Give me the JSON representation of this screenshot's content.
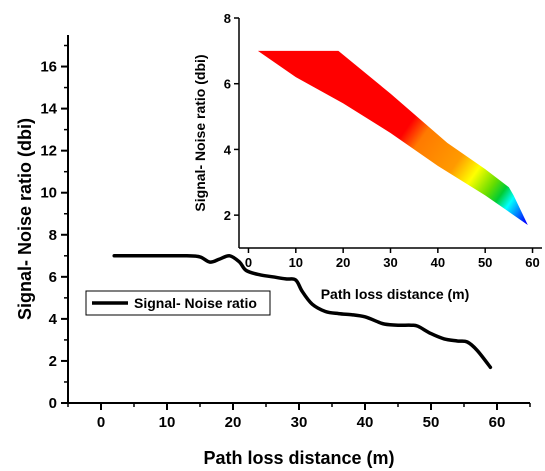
{
  "chart_data": [
    {
      "type": "line",
      "title": "",
      "xlabel": "Path loss distance (m)",
      "ylabel": "Signal- Noise ratio (dbi)",
      "xlim": [
        -5,
        65
      ],
      "ylim": [
        0,
        17.5
      ],
      "xticks": [
        "0",
        "10",
        "20",
        "30",
        "40",
        "50",
        "60"
      ],
      "yticks": [
        "0",
        "2",
        "4",
        "6",
        "8",
        "10",
        "12",
        "14",
        "16"
      ],
      "legend": "left",
      "grid": false,
      "series": [
        {
          "name": "Signal- Noise ratio",
          "color": "#000000",
          "x": [
            2,
            6,
            10,
            13,
            15,
            16.5,
            18,
            19.5,
            21,
            22,
            24,
            26,
            28,
            29.5,
            30.5,
            32,
            34,
            36,
            38,
            40,
            42,
            43,
            45,
            47,
            48,
            50,
            52,
            54,
            55.5,
            57,
            59
          ],
          "y": [
            7,
            7,
            7,
            7,
            6.95,
            6.7,
            6.85,
            7,
            6.7,
            6.3,
            6.1,
            6.0,
            5.9,
            5.85,
            5.3,
            4.7,
            4.35,
            4.25,
            4.2,
            4.1,
            3.85,
            3.75,
            3.7,
            3.7,
            3.65,
            3.3,
            3.05,
            2.95,
            2.9,
            2.5,
            1.7
          ]
        }
      ]
    },
    {
      "type": "area",
      "title": "",
      "xlabel": "Path loss distance (m)",
      "ylabel": "Signal- Noise ratio (dbi)",
      "xlim": [
        -2,
        62
      ],
      "ylim": [
        1,
        8
      ],
      "xticks": [
        "0",
        "10",
        "20",
        "30",
        "40",
        "50",
        "60"
      ],
      "yticks": [
        "2",
        "4",
        "6",
        "8"
      ],
      "grid": false,
      "colormap": [
        "#ff0000",
        "#ff8000",
        "#ffff00",
        "#00cc00",
        "#00ffff",
        "#0000ff"
      ]
    }
  ]
}
